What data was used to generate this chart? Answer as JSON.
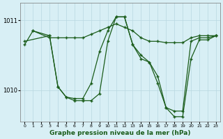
{
  "title": "Graphe pression niveau de la mer (hPa)",
  "background_color": "#d8eff5",
  "line_color": "#1a5c1a",
  "grid_color": "#b8d8e0",
  "xlim": [
    -0.5,
    23.5
  ],
  "ylim": [
    1009.55,
    1011.25
  ],
  "yticks": [
    1010,
    1011
  ],
  "xticks": [
    0,
    1,
    2,
    3,
    4,
    5,
    6,
    7,
    8,
    9,
    10,
    11,
    12,
    13,
    14,
    15,
    16,
    17,
    18,
    19,
    20,
    21,
    22,
    23
  ],
  "series": [
    {
      "points": [
        [
          0,
          1010.65
        ],
        [
          1,
          1010.85
        ],
        [
          3,
          1010.75
        ],
        [
          4,
          1010.75
        ],
        [
          5,
          1010.75
        ],
        [
          6,
          1010.75
        ],
        [
          7,
          1010.75
        ],
        [
          8,
          1010.8
        ],
        [
          9,
          1010.85
        ],
        [
          10,
          1010.9
        ],
        [
          11,
          1010.95
        ],
        [
          12,
          1010.9
        ],
        [
          13,
          1010.85
        ],
        [
          14,
          1010.75
        ],
        [
          15,
          1010.7
        ],
        [
          16,
          1010.7
        ],
        [
          17,
          1010.68
        ],
        [
          18,
          1010.68
        ],
        [
          19,
          1010.68
        ],
        [
          20,
          1010.75
        ],
        [
          21,
          1010.78
        ],
        [
          22,
          1010.78
        ],
        [
          23,
          1010.78
        ]
      ]
    },
    {
      "points": [
        [
          0,
          1010.7
        ],
        [
          3,
          1010.78
        ],
        [
          4,
          1010.05
        ],
        [
          5,
          1009.9
        ],
        [
          6,
          1009.85
        ],
        [
          7,
          1009.85
        ],
        [
          8,
          1009.85
        ],
        [
          9,
          1009.95
        ],
        [
          10,
          1010.7
        ],
        [
          11,
          1011.05
        ],
        [
          12,
          1011.05
        ],
        [
          13,
          1010.65
        ],
        [
          14,
          1010.45
        ],
        [
          15,
          1010.4
        ],
        [
          16,
          1010.2
        ],
        [
          17,
          1009.75
        ],
        [
          18,
          1009.7
        ],
        [
          19,
          1009.7
        ],
        [
          20,
          1010.7
        ],
        [
          21,
          1010.75
        ],
        [
          22,
          1010.75
        ],
        [
          23,
          1010.78
        ]
      ]
    },
    {
      "points": [
        [
          1,
          1010.85
        ],
        [
          3,
          1010.78
        ],
        [
          4,
          1010.05
        ],
        [
          5,
          1009.9
        ],
        [
          6,
          1009.88
        ],
        [
          7,
          1009.88
        ],
        [
          8,
          1010.1
        ],
        [
          9,
          1010.55
        ],
        [
          10,
          1010.85
        ],
        [
          11,
          1011.05
        ],
        [
          12,
          1011.05
        ],
        [
          13,
          1010.65
        ],
        [
          14,
          1010.5
        ],
        [
          15,
          1010.4
        ],
        [
          16,
          1010.1
        ],
        [
          17,
          1009.75
        ],
        [
          18,
          1009.62
        ],
        [
          19,
          1009.62
        ],
        [
          20,
          1010.45
        ],
        [
          21,
          1010.72
        ],
        [
          22,
          1010.72
        ],
        [
          23,
          1010.78
        ]
      ]
    }
  ]
}
